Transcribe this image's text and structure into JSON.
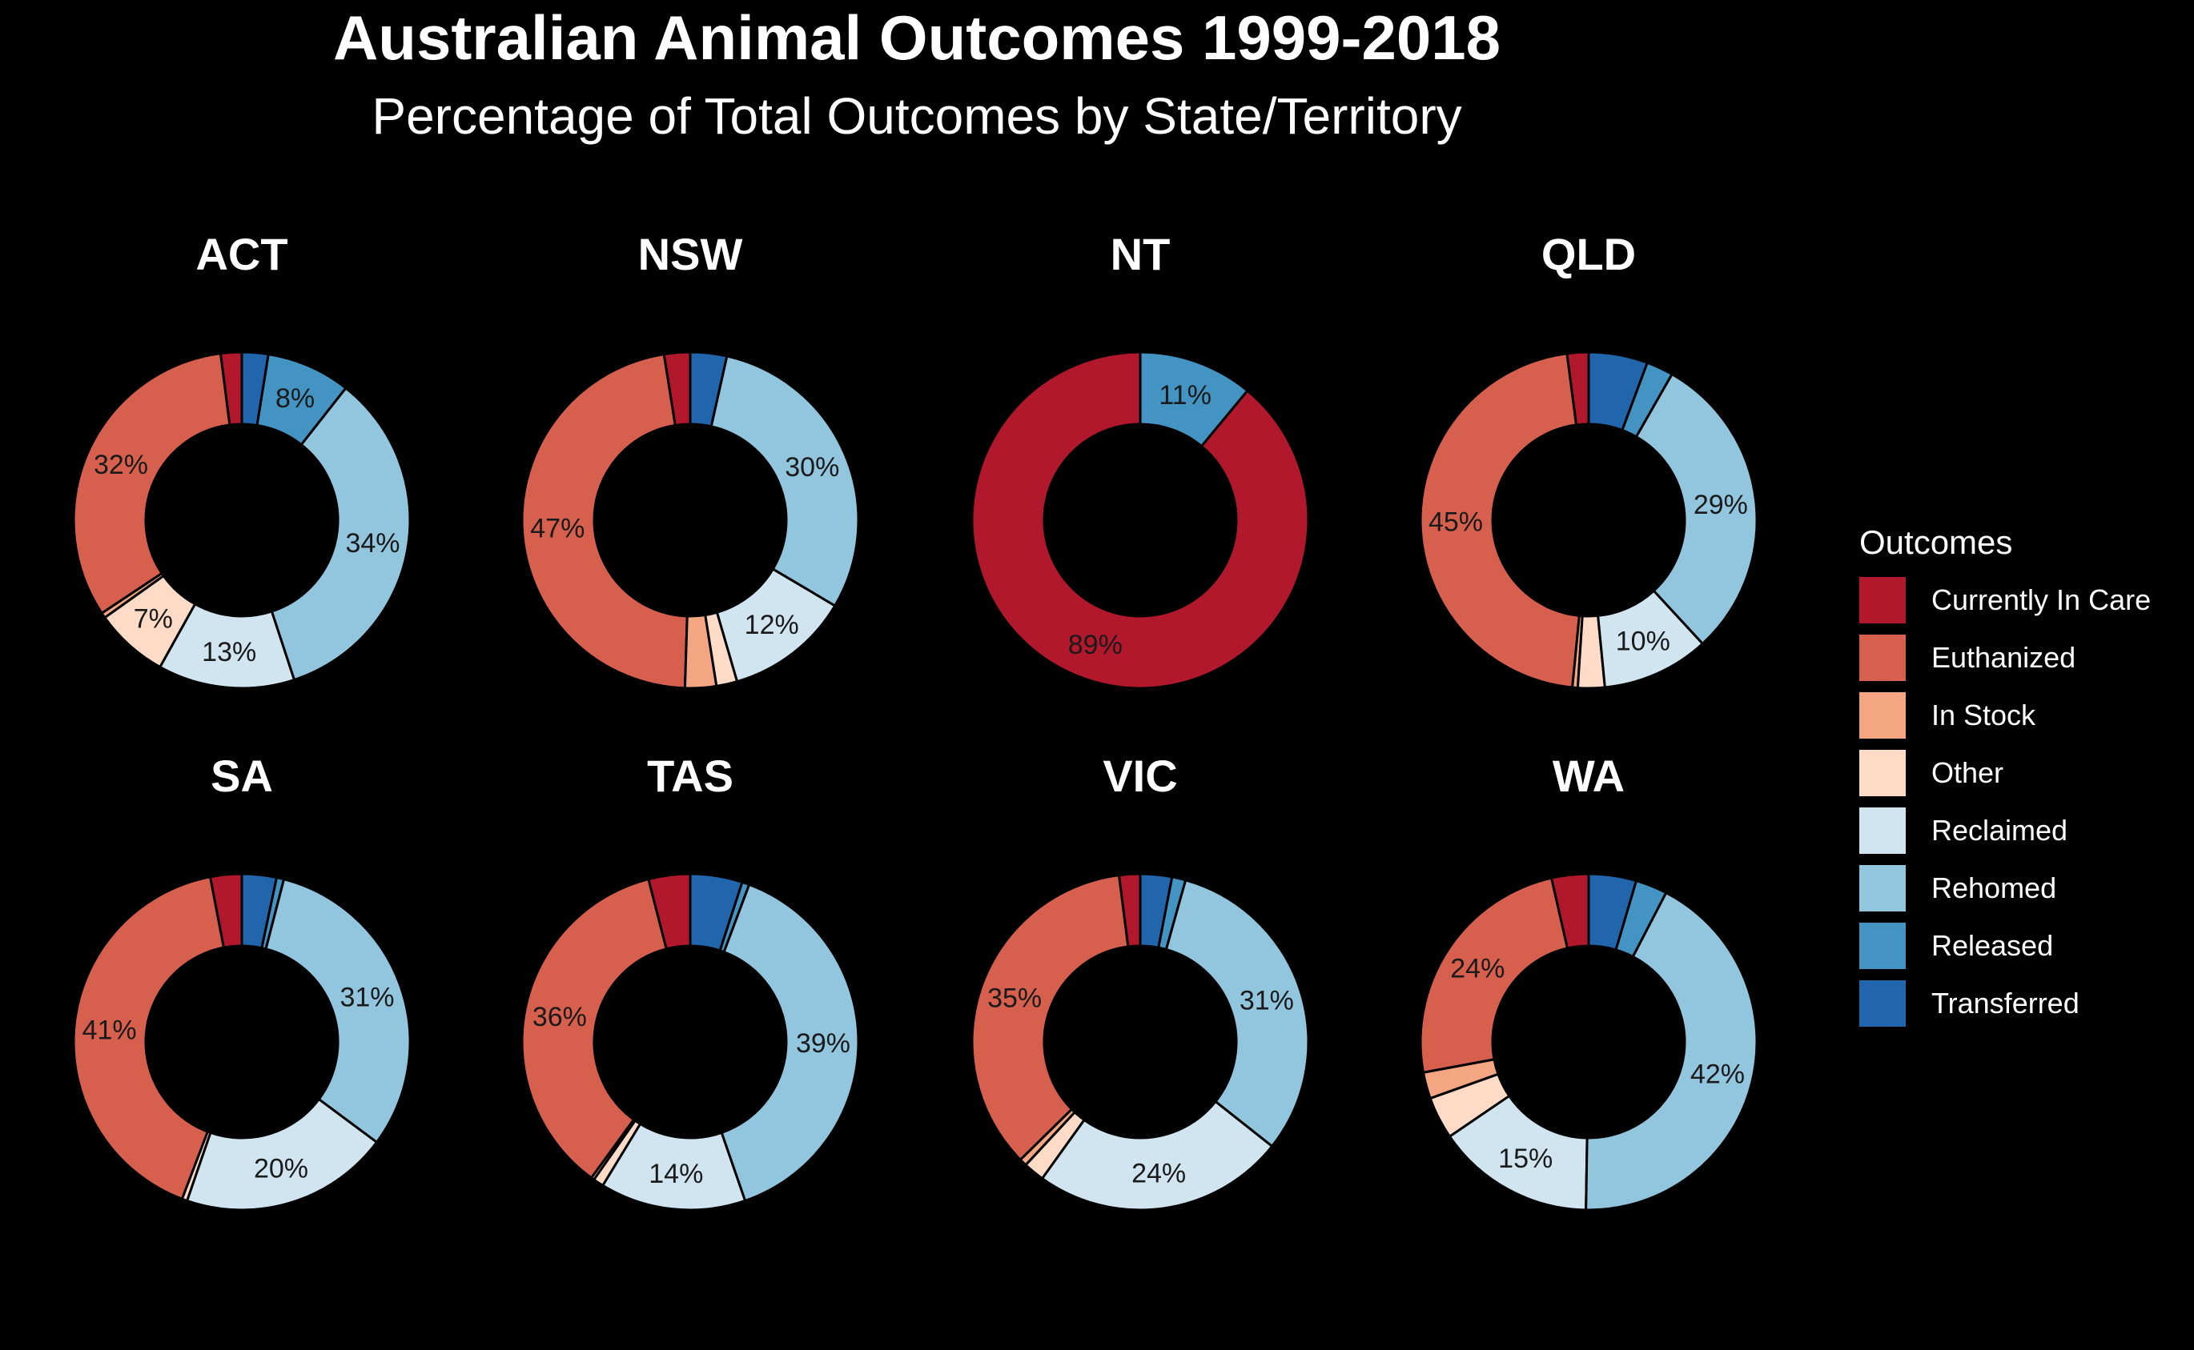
{
  "title": "Australian Animal Outcomes 1999-2018",
  "subtitle": "Percentage of Total Outcomes by State/Territory",
  "legend": {
    "title": "Outcomes",
    "items": [
      {
        "label": "Currently In Care",
        "color": "#B2182B"
      },
      {
        "label": "Euthanized",
        "color": "#D6604D"
      },
      {
        "label": "In Stock",
        "color": "#F4A582"
      },
      {
        "label": "Other",
        "color": "#FDDBC7"
      },
      {
        "label": "Reclaimed",
        "color": "#D1E5F0"
      },
      {
        "label": "Rehomed",
        "color": "#92C5DE"
      },
      {
        "label": "Released",
        "color": "#4393C3"
      },
      {
        "label": "Transferred",
        "color": "#2166AC"
      }
    ]
  },
  "chart_data": {
    "type": "pie",
    "variant": "donut",
    "categories": [
      "Currently In Care",
      "Euthanized",
      "In Stock",
      "Other",
      "Reclaimed",
      "Rehomed",
      "Released",
      "Transferred"
    ],
    "facets": [
      {
        "name": "ACT",
        "values": [
          0.02,
          0.32,
          0.005,
          0.07,
          0.13,
          0.34,
          0.08,
          0.025
        ],
        "labels": [
          "",
          "32%",
          "",
          "7%",
          "13%",
          "34%",
          "8%",
          ""
        ]
      },
      {
        "name": "NSW",
        "values": [
          0.025,
          0.47,
          0.03,
          0.02,
          0.12,
          0.3,
          0.0,
          0.035
        ],
        "labels": [
          "",
          "47%",
          "",
          "",
          "12%",
          "30%",
          "",
          ""
        ]
      },
      {
        "name": "NT",
        "values": [
          0.89,
          0.0,
          0.0,
          0.0,
          0.0,
          0.0,
          0.11,
          0.0
        ],
        "labels": [
          "89%",
          "",
          "",
          "",
          "",
          "",
          "11%",
          ""
        ]
      },
      {
        "name": "QLD",
        "values": [
          0.02,
          0.45,
          0.005,
          0.025,
          0.1,
          0.29,
          0.025,
          0.055
        ],
        "labels": [
          "",
          "45%",
          "",
          "",
          "10%",
          "29%",
          "",
          ""
        ]
      },
      {
        "name": "SA",
        "values": [
          0.03,
          0.41,
          0.0,
          0.005,
          0.2,
          0.31,
          0.007,
          0.033
        ],
        "labels": [
          "",
          "41%",
          "",
          "",
          "20%",
          "31%",
          "",
          ""
        ]
      },
      {
        "name": "TAS",
        "values": [
          0.04,
          0.36,
          0.003,
          0.01,
          0.14,
          0.39,
          0.007,
          0.05
        ],
        "labels": [
          "",
          "36%",
          "",
          "",
          "14%",
          "39%",
          "",
          ""
        ]
      },
      {
        "name": "VIC",
        "values": [
          0.02,
          0.35,
          0.007,
          0.02,
          0.24,
          0.31,
          0.013,
          0.03
        ],
        "labels": [
          "",
          "35%",
          "",
          "",
          "24%",
          "31%",
          "",
          ""
        ]
      },
      {
        "name": "WA",
        "values": [
          0.035,
          0.24,
          0.025,
          0.04,
          0.15,
          0.42,
          0.03,
          0.045
        ],
        "labels": [
          "",
          "24%",
          "",
          "",
          "15%",
          "42%",
          "",
          ""
        ]
      }
    ],
    "legend_position": "right",
    "grid": false
  }
}
